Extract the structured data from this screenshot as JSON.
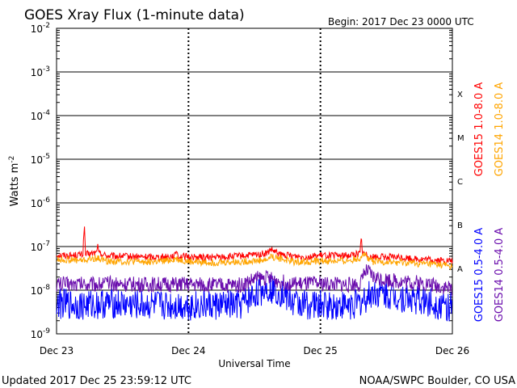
{
  "chart_data": {
    "type": "line",
    "title": "GOES Xray Flux (1-minute data)",
    "begin_label": "Begin:  2017 Dec 23 0000 UTC",
    "ylabel": "Watts m",
    "ylabel_sup": "-2",
    "xlabel": "Universal Time",
    "yscale": "log",
    "ylim": [
      1e-09,
      0.01
    ],
    "y_ticks": [
      {
        "base": "10",
        "exp": "-2",
        "value": 0.01
      },
      {
        "base": "10",
        "exp": "-3",
        "value": 0.001
      },
      {
        "base": "10",
        "exp": "-4",
        "value": 0.0001
      },
      {
        "base": "10",
        "exp": "-5",
        "value": 1e-05
      },
      {
        "base": "10",
        "exp": "-6",
        "value": 1e-06
      },
      {
        "base": "10",
        "exp": "-7",
        "value": 1e-07
      },
      {
        "base": "10",
        "exp": "-8",
        "value": 1e-08
      },
      {
        "base": "10",
        "exp": "-9",
        "value": 1e-09
      }
    ],
    "x_ticks": [
      "Dec 23",
      "Dec 24",
      "Dec 25",
      "Dec 26"
    ],
    "xlim_days": [
      0,
      3
    ],
    "flare_classes": [
      {
        "label": "X",
        "value": 0.0001
      },
      {
        "label": "M",
        "value": 1e-05
      },
      {
        "label": "C",
        "value": 1e-06
      },
      {
        "label": "B",
        "value": 1e-07
      },
      {
        "label": "A",
        "value": 1e-08
      }
    ],
    "series": [
      {
        "name": "GOES15 1.0-8.0 A",
        "color": "#ff0000",
        "x": [
          0,
          0.1,
          0.2,
          0.21,
          0.22,
          0.3,
          0.31,
          0.32,
          0.4,
          0.5,
          0.6,
          0.8,
          0.9,
          0.91,
          0.92,
          1.0,
          1.1,
          1.3,
          1.5,
          1.6,
          1.62,
          1.7,
          1.9,
          2.0,
          2.2,
          2.3,
          2.31,
          2.32,
          2.4,
          2.6,
          2.8,
          3.0
        ],
        "y": [
          6.5e-08,
          6.2e-08,
          6.6e-08,
          3.4e-07,
          6.5e-08,
          7.2e-08,
          1.1e-07,
          7e-08,
          6e-08,
          6e-08,
          5.8e-08,
          5.8e-08,
          6.2e-08,
          9e-08,
          6e-08,
          5.8e-08,
          5.6e-08,
          5.8e-08,
          6.4e-08,
          7e-08,
          8.5e-08,
          6.4e-08,
          5.8e-08,
          6.2e-08,
          6.2e-08,
          7e-08,
          1.6e-07,
          7e-08,
          5.8e-08,
          5.6e-08,
          5e-08,
          4.6e-08
        ]
      },
      {
        "name": "GOES14 1.0-8.0 A",
        "color": "#ffa500",
        "x": [
          0,
          0.2,
          0.3,
          0.4,
          0.6,
          0.8,
          0.9,
          1.0,
          1.2,
          1.4,
          1.6,
          1.62,
          1.8,
          2.0,
          2.2,
          2.3,
          2.32,
          2.4,
          2.6,
          2.8,
          3.0
        ],
        "y": [
          5e-08,
          4.8e-08,
          5.4e-08,
          4.6e-08,
          4.5e-08,
          4.5e-08,
          5.2e-08,
          4.5e-08,
          4.3e-08,
          4.5e-08,
          5e-08,
          6e-08,
          4.5e-08,
          4.6e-08,
          4.7e-08,
          5.4e-08,
          7e-08,
          4.5e-08,
          4.3e-08,
          4e-08,
          3.6e-08
        ]
      },
      {
        "name": "GOES15 0.5-4.0 A",
        "color": "#0000ff",
        "x": [
          0,
          0.2,
          0.4,
          0.6,
          0.8,
          1.0,
          1.2,
          1.4,
          1.5,
          1.6,
          1.7,
          1.8,
          2.0,
          2.2,
          2.3,
          2.4,
          2.6,
          2.8,
          3.0
        ],
        "y": [
          5e-09,
          4.5e-09,
          5e-09,
          4.5e-09,
          4.5e-09,
          4.5e-09,
          4.5e-09,
          4.5e-09,
          8e-09,
          1.2e-08,
          9e-09,
          5e-09,
          4.5e-09,
          4.5e-09,
          5e-09,
          9e-09,
          7e-09,
          5.5e-09,
          4e-09
        ]
      },
      {
        "name": "GOES14 0.5-4.0 A",
        "color": "#6a0dad",
        "x": [
          0,
          0.2,
          0.4,
          0.6,
          0.8,
          1.0,
          1.2,
          1.4,
          1.5,
          1.6,
          1.7,
          1.8,
          2.0,
          2.2,
          2.3,
          2.35,
          2.4,
          2.6,
          2.8,
          3.0
        ],
        "y": [
          1.4e-08,
          1.4e-08,
          1.4e-08,
          1.35e-08,
          1.35e-08,
          1.35e-08,
          1.3e-08,
          1.3e-08,
          1.8e-08,
          1.9e-08,
          1.6e-08,
          1.4e-08,
          1.4e-08,
          1.35e-08,
          1.4e-08,
          2.8e-08,
          2e-08,
          1.6e-08,
          1.4e-08,
          1.1e-08
        ]
      }
    ]
  },
  "footer": {
    "updated": "Updated 2017 Dec 25 23:59:12 UTC",
    "credit": "NOAA/SWPC Boulder, CO USA"
  }
}
